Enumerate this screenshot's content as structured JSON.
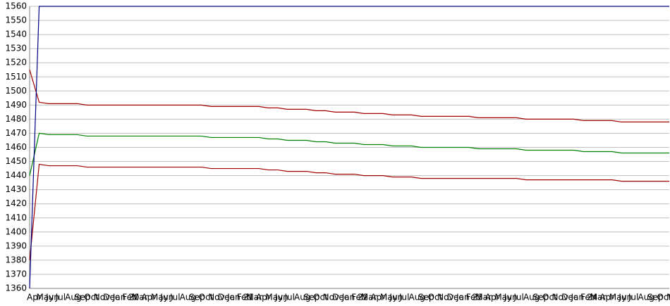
{
  "chart_data": {
    "type": "line",
    "categories": [
      "Apr",
      "May",
      "Jun",
      "Jul",
      "Aug",
      "Sep",
      "Oct",
      "Nov",
      "Dec",
      "Jan 20",
      "Feb",
      "Mar",
      "Apr",
      "May",
      "Jun",
      "Jul",
      "Aug",
      "Sep",
      "Oct",
      "Nov",
      "Dec",
      "Jan 21",
      "Feb",
      "Mar",
      "Apr",
      "May",
      "Jun",
      "Jul",
      "Aug",
      "Sep",
      "Oct",
      "Nov",
      "Dec",
      "Jan 22",
      "Feb",
      "Mar",
      "Apr",
      "May",
      "Jun",
      "Jul",
      "Aug",
      "Sep",
      "Oct",
      "Nov",
      "Dec",
      "Jan 23",
      "Feb",
      "Mar",
      "Apr",
      "May",
      "Jun",
      "Jul",
      "Aug",
      "Sep",
      "Oct",
      "Nov",
      "Dec",
      "Jan 24",
      "Feb",
      "Mar",
      "Apr",
      "May",
      "Jun",
      "Jul",
      "Aug",
      "Sep",
      "Oct",
      "Nov"
    ],
    "series": [
      {
        "color": "#a00000",
        "values": [
          1515,
          1492,
          1491,
          1491,
          1491,
          1491,
          1490,
          1490,
          1490,
          1490,
          1490,
          1490,
          1490,
          1490,
          1490,
          1490,
          1490,
          1490,
          1490,
          1489,
          1489,
          1489,
          1489,
          1489,
          1489,
          1488,
          1488,
          1487,
          1487,
          1487,
          1486,
          1486,
          1485,
          1485,
          1485,
          1484,
          1484,
          1484,
          1483,
          1483,
          1483,
          1482,
          1482,
          1482,
          1482,
          1482,
          1482,
          1481,
          1481,
          1481,
          1481,
          1481,
          1480,
          1480,
          1480,
          1480,
          1480,
          1480,
          1479,
          1479,
          1479,
          1479,
          1478,
          1478,
          1478,
          1478,
          1478,
          1478
        ]
      },
      {
        "color": "#008000",
        "values": [
          1440,
          1470,
          1469,
          1469,
          1469,
          1469,
          1468,
          1468,
          1468,
          1468,
          1468,
          1468,
          1468,
          1468,
          1468,
          1468,
          1468,
          1468,
          1468,
          1467,
          1467,
          1467,
          1467,
          1467,
          1467,
          1466,
          1466,
          1465,
          1465,
          1465,
          1464,
          1464,
          1463,
          1463,
          1463,
          1462,
          1462,
          1462,
          1461,
          1461,
          1461,
          1460,
          1460,
          1460,
          1460,
          1460,
          1460,
          1459,
          1459,
          1459,
          1459,
          1459,
          1458,
          1458,
          1458,
          1458,
          1458,
          1458,
          1457,
          1457,
          1457,
          1457,
          1456,
          1456,
          1456,
          1456,
          1456,
          1456
        ]
      },
      {
        "color": "#a00000",
        "values": [
          1380,
          1448,
          1447,
          1447,
          1447,
          1447,
          1446,
          1446,
          1446,
          1446,
          1446,
          1446,
          1446,
          1446,
          1446,
          1446,
          1446,
          1446,
          1446,
          1445,
          1445,
          1445,
          1445,
          1445,
          1445,
          1444,
          1444,
          1443,
          1443,
          1443,
          1442,
          1442,
          1441,
          1441,
          1441,
          1440,
          1440,
          1440,
          1439,
          1439,
          1439,
          1438,
          1438,
          1438,
          1438,
          1438,
          1438,
          1438,
          1438,
          1438,
          1438,
          1438,
          1437,
          1437,
          1437,
          1437,
          1437,
          1437,
          1437,
          1437,
          1437,
          1437,
          1436,
          1436,
          1436,
          1436,
          1436,
          1436
        ]
      },
      {
        "color": "#000080",
        "values": [
          1360,
          1560,
          1560,
          1560,
          1560,
          1560,
          1560,
          1560,
          1560,
          1560,
          1560,
          1560,
          1560,
          1560,
          1560,
          1560,
          1560,
          1560,
          1560,
          1560,
          1560,
          1560,
          1560,
          1560,
          1560,
          1560,
          1560,
          1560,
          1560,
          1560,
          1560,
          1560,
          1560,
          1560,
          1560,
          1560,
          1560,
          1560,
          1560,
          1560,
          1560,
          1560,
          1560,
          1560,
          1560,
          1560,
          1560,
          1560,
          1560,
          1560,
          1560,
          1560,
          1560,
          1560,
          1560,
          1560,
          1560,
          1560,
          1560,
          1560,
          1560,
          1560,
          1560,
          1560,
          1560,
          1560,
          1560,
          1560
        ]
      }
    ],
    "ylim": [
      1360,
      1560
    ],
    "yticks": [
      1360,
      1370,
      1380,
      1390,
      1400,
      1410,
      1420,
      1430,
      1440,
      1450,
      1460,
      1470,
      1480,
      1490,
      1500,
      1510,
      1520,
      1530,
      1540,
      1550,
      1560
    ],
    "grid": true
  }
}
